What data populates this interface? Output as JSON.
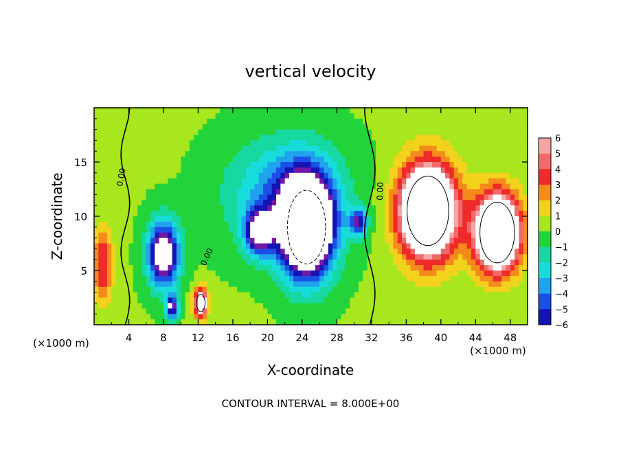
{
  "chart_data": {
    "type": "heatmap",
    "title": "vertical velocity",
    "xlabel": "X-coordinate",
    "ylabel": "Z-coordinate",
    "x_unit_left": "(×1000 m)",
    "x_unit_right": "(×1000 m)",
    "footer": "CONTOUR INTERVAL = 8.000E+00",
    "contour_label": "0.00",
    "xlim": [
      0,
      50
    ],
    "ylim": [
      0,
      20
    ],
    "xticks": [
      "4",
      "8",
      "12",
      "16",
      "20",
      "24",
      "28",
      "32",
      "36",
      "40",
      "44",
      "48"
    ],
    "xtick_values": [
      4,
      8,
      12,
      16,
      20,
      24,
      28,
      32,
      36,
      40,
      44,
      48
    ],
    "yticks": [
      "5",
      "10",
      "15"
    ],
    "ytick_values": [
      5,
      10,
      15
    ],
    "colorbar": {
      "labels": [
        "6",
        "5",
        "4",
        "3",
        "2",
        "1",
        "0",
        "−1",
        "−2",
        "−3",
        "−4",
        "−5",
        "−6"
      ],
      "values": [
        6,
        5,
        4,
        3,
        2,
        1,
        0,
        -1,
        -2,
        -3,
        -4,
        -5,
        -6
      ],
      "range": [
        -6,
        6
      ]
    },
    "features": [
      {
        "kind": "updraft",
        "x": 38.5,
        "z": 10.5,
        "sx": 3.2,
        "sz": 4.2,
        "amp": 14
      },
      {
        "kind": "updraft",
        "x": 46.5,
        "z": 8.5,
        "sx": 2.6,
        "sz": 3.5,
        "amp": 13
      },
      {
        "kind": "updraft",
        "x": 12.3,
        "z": 2.0,
        "sx": 0.8,
        "sz": 1.3,
        "amp": 8
      },
      {
        "kind": "updraft",
        "x": 1.0,
        "z": 5.5,
        "sx": 1.2,
        "sz": 3.5,
        "amp": 4
      },
      {
        "kind": "downdraft",
        "x": 24.5,
        "z": 9.0,
        "sx": 3.0,
        "sz": 4.5,
        "amp": -14
      },
      {
        "kind": "downdraft",
        "x": 8.0,
        "z": 6.5,
        "sx": 1.8,
        "sz": 3.0,
        "amp": -9
      },
      {
        "kind": "downdraft",
        "x": 19.0,
        "z": 8.5,
        "sx": 1.6,
        "sz": 2.0,
        "amp": -7
      },
      {
        "kind": "downdraft",
        "x": 9.0,
        "z": 1.6,
        "sx": 0.7,
        "sz": 1.1,
        "amp": -7
      },
      {
        "kind": "downdraft",
        "x": 30.5,
        "z": 9.5,
        "sx": 1.0,
        "sz": 1.2,
        "amp": -6
      },
      {
        "kind": "downdraft",
        "x": 22.0,
        "z": 12.0,
        "sx": 6.5,
        "sz": 5.0,
        "amp": -4
      }
    ],
    "grid": false,
    "legend": "colorbar-right"
  }
}
